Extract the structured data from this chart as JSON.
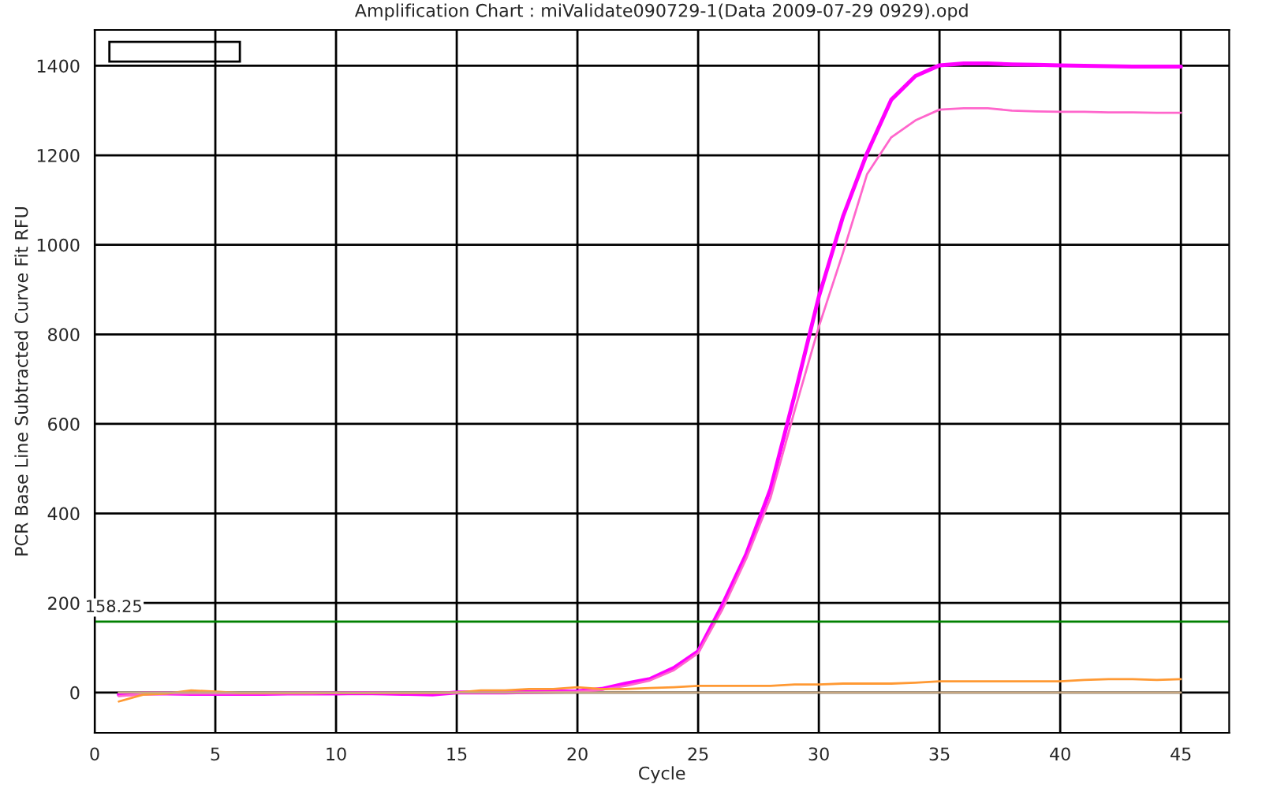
{
  "chart_data": {
    "type": "line",
    "title": "Amplification Chart : miValidate090729-1(Data 2009-07-29 0929).opd",
    "xlabel": "Cycle",
    "ylabel": "PCR Base Line Subtracted Curve Fit RFU",
    "x": [
      1,
      2,
      3,
      4,
      5,
      6,
      7,
      8,
      9,
      10,
      11,
      12,
      13,
      14,
      15,
      16,
      17,
      18,
      19,
      20,
      21,
      22,
      23,
      24,
      25,
      26,
      27,
      28,
      29,
      30,
      31,
      32,
      33,
      34,
      35,
      36,
      37,
      38,
      39,
      40,
      41,
      42,
      43,
      44,
      45
    ],
    "series": [
      {
        "color": "#ff00ff",
        "values": [
          -5,
          -2,
          -2,
          -3,
          -3,
          -3,
          -3,
          -2,
          -2,
          -2,
          -1,
          -2,
          -3,
          -4,
          0,
          0,
          0,
          1,
          2,
          3,
          8,
          20,
          30,
          55,
          92,
          195,
          310,
          455,
          665,
          884,
          1063,
          1205,
          1324,
          1377,
          1401,
          1405,
          1405,
          1403,
          1402,
          1401,
          1400,
          1399,
          1398,
          1398,
          1398
        ]
      },
      {
        "color": "#ff66cc",
        "values": [
          -8,
          -4,
          -2,
          -2,
          -2,
          -2,
          -2,
          -2,
          -2,
          -1,
          -1,
          -1,
          -1,
          -1,
          0,
          0,
          0,
          0,
          1,
          2,
          6,
          15,
          27,
          50,
          88,
          185,
          300,
          435,
          630,
          817,
          982,
          1158,
          1240,
          1278,
          1302,
          1305,
          1305,
          1300,
          1298,
          1297,
          1297,
          1296,
          1296,
          1295,
          1295
        ]
      },
      {
        "color": "#ff9933",
        "values": [
          -20,
          -5,
          -2,
          5,
          2,
          -1,
          -1,
          -1,
          -1,
          -1,
          -1,
          -1,
          -1,
          -1,
          0,
          5,
          5,
          8,
          8,
          12,
          8,
          8,
          10,
          12,
          15,
          15,
          15,
          15,
          18,
          18,
          20,
          20,
          20,
          22,
          25,
          25,
          25,
          25,
          25,
          25,
          28,
          30,
          30,
          28,
          30
        ]
      },
      {
        "color": "#c8a882",
        "values": [
          0,
          0,
          0,
          0,
          0,
          0,
          0,
          0,
          0,
          0,
          0,
          0,
          0,
          0,
          0,
          0,
          0,
          0,
          0,
          0,
          0,
          0,
          0,
          0,
          0,
          0,
          0,
          0,
          0,
          0,
          0,
          0,
          0,
          0,
          0,
          0,
          0,
          0,
          0,
          0,
          0,
          0,
          0,
          0,
          0
        ]
      }
    ],
    "xlim": [
      0,
      47
    ],
    "ylim": [
      -90,
      1480
    ],
    "xticks": [
      0,
      5,
      10,
      15,
      20,
      25,
      30,
      35,
      40,
      45
    ],
    "yticks": [
      0,
      200,
      400,
      600,
      800,
      1000,
      1200,
      1400
    ],
    "grid": true,
    "ref_lines": [
      {
        "axis": "y",
        "value": 158.25,
        "label": "158.25",
        "color": "#008000"
      }
    ]
  }
}
